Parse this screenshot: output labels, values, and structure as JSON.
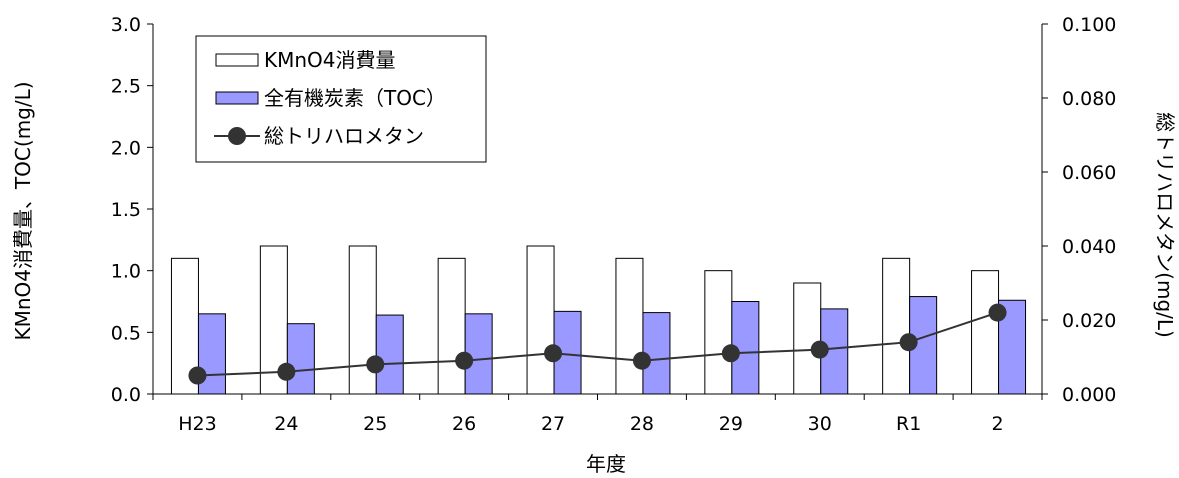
{
  "chart_data": {
    "type": "bar",
    "categories": [
      "H23",
      "24",
      "25",
      "26",
      "27",
      "28",
      "29",
      "30",
      "R1",
      "2"
    ],
    "series": [
      {
        "name": "KMnO4消費量",
        "type": "bar",
        "axis": "left",
        "color": "#ffffff",
        "stroke": "#000000",
        "values": [
          1.1,
          1.2,
          1.2,
          1.1,
          1.2,
          1.1,
          1.0,
          0.9,
          1.1,
          1.0
        ]
      },
      {
        "name": "全有機炭素（TOC）",
        "type": "bar",
        "axis": "left",
        "color": "#9999ff",
        "stroke": "#000000",
        "values": [
          0.65,
          0.57,
          0.64,
          0.65,
          0.67,
          0.66,
          0.75,
          0.69,
          0.79,
          0.76
        ]
      },
      {
        "name": "総トリハロメタン",
        "type": "line",
        "axis": "right",
        "color": "#333333",
        "marker": "circle",
        "values": [
          0.005,
          0.006,
          0.008,
          0.009,
          0.011,
          0.009,
          0.011,
          0.012,
          0.014,
          0.022
        ]
      }
    ],
    "xlabel": "年度",
    "ylabel": "KMnO4消費量、TOC(mg/L)",
    "y2label": "総トリハロメタン(mg/L)",
    "ylim": [
      0,
      3.0
    ],
    "y2lim": [
      0,
      0.1
    ],
    "yticks": [
      "0.0",
      "0.5",
      "1.0",
      "1.5",
      "2.0",
      "2.5",
      "3.0"
    ],
    "y2ticks": [
      "0.000",
      "0.020",
      "0.040",
      "0.060",
      "0.080",
      "0.100"
    ],
    "grid": false,
    "legend_position": "top-left"
  }
}
